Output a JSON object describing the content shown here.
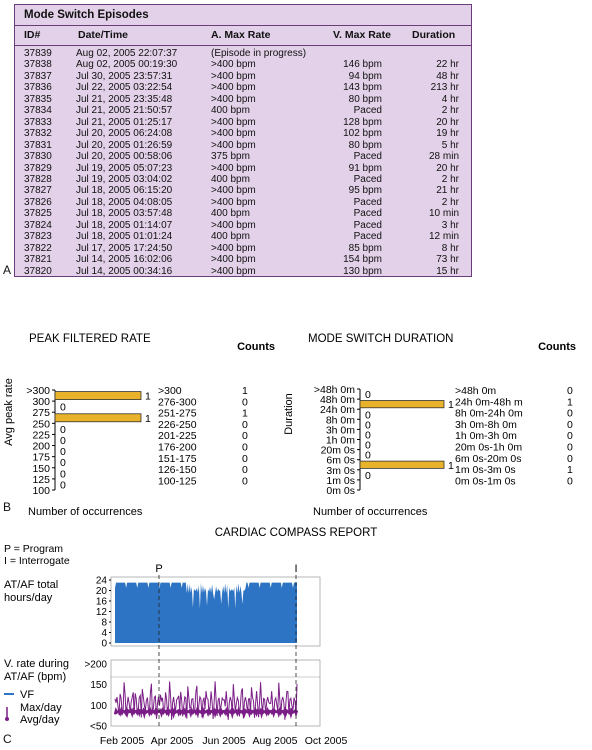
{
  "panel_labels": {
    "a": "A",
    "b": "B",
    "c": "C"
  },
  "episodes": {
    "title": "Mode Switch Episodes",
    "columns": [
      "ID#",
      "Date/Time",
      "A. Max Rate",
      "V. Max Rate",
      "Duration"
    ],
    "rows": [
      {
        "id": "37839",
        "dt": "Aug 02, 2005 22:07:37",
        "amax": "(Episode in progress)",
        "vmax": "",
        "dur": ""
      },
      {
        "id": "37838",
        "dt": "Aug 02, 2005 00:19:30",
        "amax": ">400 bpm",
        "vmax": "146 bpm",
        "dur": "22 hr"
      },
      {
        "id": "37837",
        "dt": "Jul 30, 2005 23:57:31",
        "amax": ">400 bpm",
        "vmax": "94 bpm",
        "dur": "48 hr"
      },
      {
        "id": "37836",
        "dt": "Jul 22, 2005 03:22:54",
        "amax": ">400 bpm",
        "vmax": "143 bpm",
        "dur": "213 hr"
      },
      {
        "id": "37835",
        "dt": "Jul 21, 2005 23:35:48",
        "amax": ">400 bpm",
        "vmax": "80 bpm",
        "dur": "4 hr"
      },
      {
        "id": "37834",
        "dt": "Jul 21, 2005 21:50:57",
        "amax": "400 bpm",
        "vmax": "Paced",
        "dur": "2 hr"
      },
      {
        "id": "37833",
        "dt": "Jul 21, 2005 01:25:17",
        "amax": ">400 bpm",
        "vmax": "128 bpm",
        "dur": "20 hr"
      },
      {
        "id": "37832",
        "dt": "Jul 20, 2005 06:24:08",
        "amax": ">400 bpm",
        "vmax": "102 bpm",
        "dur": "19 hr"
      },
      {
        "id": "37831",
        "dt": "Jul 20, 2005 01:26:59",
        "amax": ">400 bpm",
        "vmax": "80 bpm",
        "dur": "5 hr"
      },
      {
        "id": "37830",
        "dt": "Jul 20, 2005 00:58:06",
        "amax": "375 bpm",
        "vmax": "Paced",
        "dur": "28 min"
      },
      {
        "id": "37829",
        "dt": "Jul 19, 2005 05:07:23",
        "amax": ">400 bpm",
        "vmax": "91 bpm",
        "dur": "20 hr"
      },
      {
        "id": "37828",
        "dt": "Jul 19, 2005 03:04:02",
        "amax": "400 bpm",
        "vmax": "Paced",
        "dur": "2 hr"
      },
      {
        "id": "37827",
        "dt": "Jul 18, 2005 06:15:20",
        "amax": ">400 bpm",
        "vmax": "95 bpm",
        "dur": "21 hr"
      },
      {
        "id": "37826",
        "dt": "Jul 18, 2005 04:08:05",
        "amax": ">400 bpm",
        "vmax": "Paced",
        "dur": "2 hr"
      },
      {
        "id": "37825",
        "dt": "Jul 18, 2005 03:57:48",
        "amax": "400 bpm",
        "vmax": "Paced",
        "dur": "10 min"
      },
      {
        "id": "37824",
        "dt": "Jul 18, 2005 01:14:07",
        "amax": ">400 bpm",
        "vmax": "Paced",
        "dur": "3 hr"
      },
      {
        "id": "37823",
        "dt": "Jul 18, 2005 01:01:24",
        "amax": "400 bpm",
        "vmax": "Paced",
        "dur": "12 min"
      },
      {
        "id": "37822",
        "dt": "Jul 17, 2005 17:24:50",
        "amax": ">400 bpm",
        "vmax": "85 bpm",
        "dur": "8 hr"
      },
      {
        "id": "37821",
        "dt": "Jul 14, 2005 16:02:06",
        "amax": ">400 bpm",
        "vmax": "154 bpm",
        "dur": "73 hr"
      },
      {
        "id": "37820",
        "dt": "Jul 14, 2005 00:34:16",
        "amax": ">400 bpm",
        "vmax": "130 bpm",
        "dur": "15 hr"
      }
    ]
  },
  "chart_data": [
    {
      "type": "bar",
      "title": "PEAK FILTERED RATE",
      "ylabel": "Avg peak rate",
      "xlabel": "Number of occurrences",
      "y_ticks": [
        ">300",
        "300",
        "275",
        "250",
        "225",
        "200",
        "175",
        "150",
        "125",
        "100"
      ],
      "bar_color": "#e8b22a",
      "counts_header": "Counts",
      "categories": [
        ">300",
        "276-300",
        "251-275",
        "226-250",
        "201-225",
        "176-200",
        "151-175",
        "126-150",
        "100-125"
      ],
      "values": [
        1,
        0,
        1,
        0,
        0,
        0,
        0,
        0,
        0
      ]
    },
    {
      "type": "bar",
      "title": "MODE SWITCH DURATION",
      "ylabel": "Duration",
      "xlabel": "Number of occurrences",
      "y_ticks": [
        ">48h 0m",
        "48h 0m",
        "24h 0m",
        "8h 0m",
        "3h 0m",
        "1h 0m",
        "20m 0s",
        "6m 0s",
        "3m 0s",
        "1m 0s",
        "0m 0s"
      ],
      "bar_color": "#e8b22a",
      "counts_header": "Counts",
      "categories": [
        ">48h 0m",
        "24h 0m-48h m",
        "8h 0m-24h 0m",
        "3h 0m-8h 0m",
        "1h 0m-3h 0m",
        "20m 0s-1h 0m",
        "6m 0s-20m 0s",
        "1m 0s-3m 0s",
        "0m 0s-1m 0s"
      ],
      "values": [
        0,
        1,
        0,
        0,
        0,
        0,
        0,
        1,
        0
      ]
    },
    {
      "type": "area",
      "title": "CARDIAC COMPASS REPORT",
      "ylabel": "AT/AF total hours/day",
      "ylim": [
        0,
        24
      ],
      "y_ticks": [
        "24",
        "20",
        "16",
        "12",
        "8",
        "4",
        "0"
      ],
      "color": "#2e74c4",
      "x_ticks": [
        "Feb 2005",
        "Apr 2005",
        "Jun 2005",
        "Aug 2005",
        "Oct 2005"
      ]
    },
    {
      "type": "line",
      "ylabel": "V. rate during AT/AF (bpm)",
      "y_ticks": [
        ">200",
        "150",
        "100",
        "<50"
      ],
      "color": "#7a1d86",
      "x_ticks": [
        "Feb 2005",
        "Apr 2005",
        "Jun 2005",
        "Aug 2005",
        "Oct 2005"
      ]
    }
  ],
  "compass": {
    "legend_p": "P = Program",
    "legend_i": "I = Interrogate",
    "marker_p": "P",
    "marker_i": "I",
    "legend_vf": "VF",
    "legend_max": "Max/day",
    "legend_avg": "Avg/day",
    "vf_color": "#2e74c4"
  }
}
